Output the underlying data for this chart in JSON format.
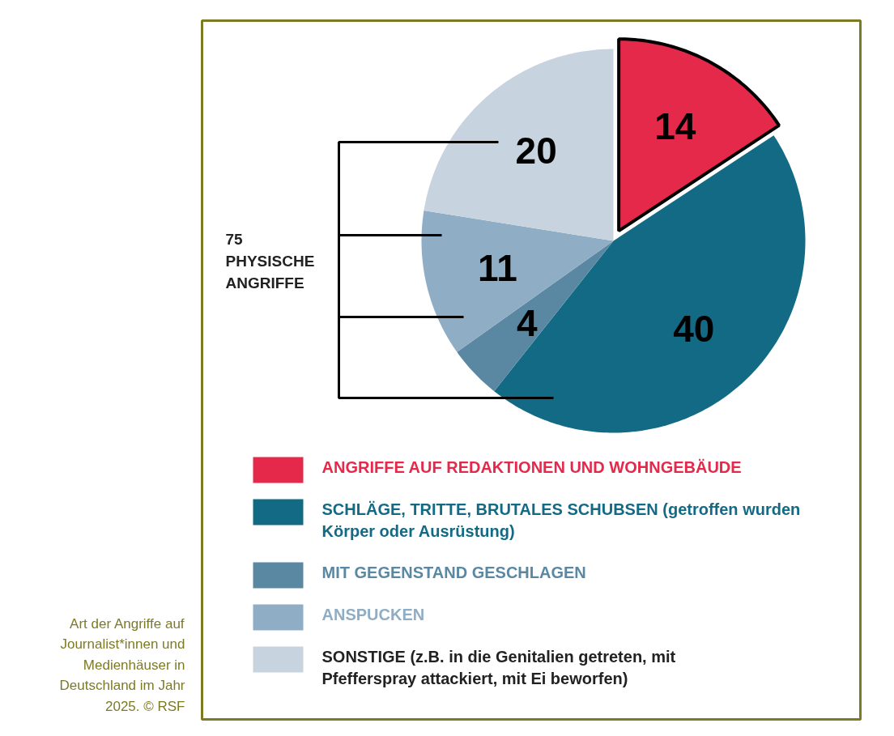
{
  "chart_data": {
    "type": "pie",
    "categories": [
      "ANGRIFFE AUF REDAKTIONEN UND WOHNGEBÄUDE",
      "SCHLÄGE, TRITTE, BRUTALES SCHUBSEN (getroffen wurden Körper oder Ausrüstung)",
      "MIT GEGENSTAND GESCHLAGEN",
      "ANSPUCKEN",
      "SONSTIGE (z.B. in die Genitalien getreten, mit Pfefferspray attackiert, mit Ei beworfen)"
    ],
    "values": [
      14,
      40,
      4,
      11,
      20
    ],
    "colors": [
      "#e4294a",
      "#136a85",
      "#5a88a3",
      "#8fadc4",
      "#c7d3df"
    ],
    "data_labels": true,
    "legend": "bottom",
    "annotations": [
      "75 PHYSISCHE ANGRIFFE",
      "Art der Angriffe auf Journalist*innen und Medienhäuser in Deutschland im Jahr 2025. © RSF"
    ]
  }
}
